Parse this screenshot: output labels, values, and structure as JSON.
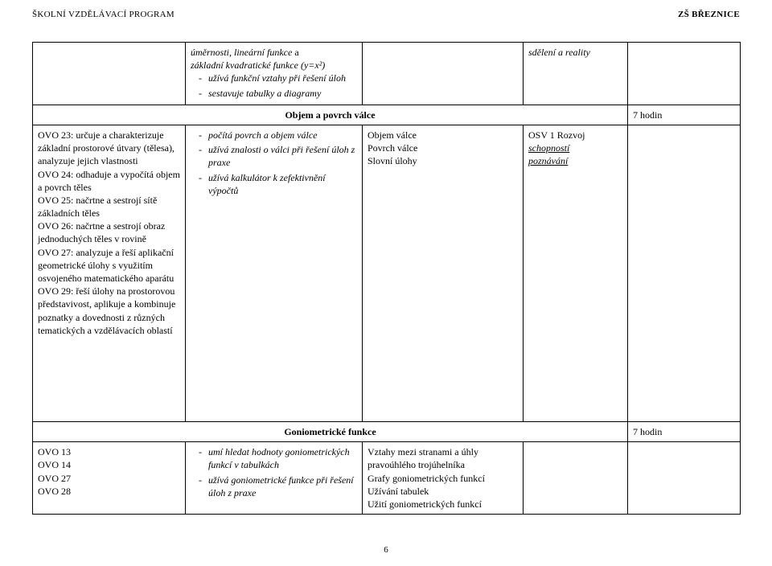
{
  "header": {
    "left": "ŠKOLNÍ VZDĚLÁVACÍ PROGRAM",
    "right": "ZŠ BŘEZNICE"
  },
  "row1": {
    "col2_lead": "úměrnosti, lineární funkce",
    "col2_lead_tail": " a ",
    "col2_line2": "základní kvadratické funkce (y=x²)",
    "col2_items": [
      "užívá funkční vztahy při řešení úloh",
      "sestavuje tabulky a diagramy"
    ],
    "col4": "sdělení a reality"
  },
  "section1": {
    "title": "Objem a povrch válce",
    "hours": "7 hodin"
  },
  "row2": {
    "col1": "OVO 23: určuje a charakterizuje základní prostorové útvary (tělesa), analyzuje jejich vlastnosti\nOVO 24: odhaduje a vypočítá objem a povrch těles\nOVO 25: načrtne a sestrojí sítě základních těles\nOVO 26: načrtne a sestrojí obraz jednoduchých těles v rovině\nOVO 27: analyzuje a řeší aplikační geometrické úlohy s využitím osvojeného matematického aparátu\nOVO 29: řeší úlohy na prostorovou představivost, aplikuje a kombinuje poznatky a dovednosti z různých tematických a vzdělávacích oblastí",
    "col2_items": [
      "počítá povrch a objem válce",
      "užívá znalosti o válci při řešení úloh z praxe",
      "užívá kalkulátor k zefektivnění výpočtů"
    ],
    "col3": "Objem válce\nPovrch válce\nSlovní úlohy",
    "col4_line1": "OSV 1   Rozvoj",
    "col4_line2": "schopností",
    "col4_line3": "poznávání"
  },
  "section2": {
    "title": "Goniometrické funkce",
    "hours": "7 hodin"
  },
  "row3": {
    "col1": "OVO 13\nOVO 14\nOVO 27\nOVO 28",
    "col2_items": [
      "umí hledat hodnoty goniometrických funkcí v tabulkách",
      "užívá goniometrické funkce při řešení úloh z praxe"
    ],
    "col3": "Vztahy mezi stranami a úhly pravoúhlého trojúhelníka\nGrafy goniometrických funkcí\nUžívání tabulek\nUžití goniometrických funkcí"
  },
  "pagenum": "6"
}
